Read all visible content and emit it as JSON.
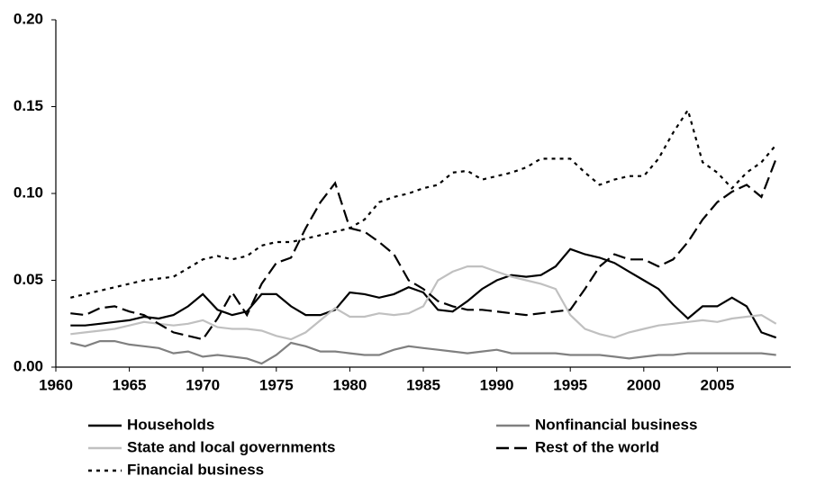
{
  "chart_data": {
    "type": "line",
    "x": [
      1961,
      1962,
      1963,
      1964,
      1965,
      1966,
      1967,
      1968,
      1969,
      1970,
      1971,
      1972,
      1973,
      1974,
      1975,
      1976,
      1977,
      1978,
      1979,
      1980,
      1981,
      1982,
      1983,
      1984,
      1985,
      1986,
      1987,
      1988,
      1989,
      1990,
      1991,
      1992,
      1993,
      1994,
      1995,
      1996,
      1997,
      1998,
      1999,
      2000,
      2001,
      2002,
      2003,
      2004,
      2005,
      2006,
      2007,
      2008,
      2009
    ],
    "series": [
      {
        "name": "Households",
        "color": "#000000",
        "style": "solid",
        "values": [
          0.024,
          0.024,
          0.025,
          0.026,
          0.027,
          0.029,
          0.028,
          0.03,
          0.035,
          0.042,
          0.033,
          0.03,
          0.032,
          0.042,
          0.042,
          0.035,
          0.03,
          0.03,
          0.033,
          0.043,
          0.042,
          0.04,
          0.042,
          0.046,
          0.043,
          0.033,
          0.032,
          0.038,
          0.045,
          0.05,
          0.053,
          0.052,
          0.053,
          0.058,
          0.068,
          0.065,
          0.063,
          0.06,
          0.055,
          0.05,
          0.045,
          0.036,
          0.028,
          0.035,
          0.035,
          0.04,
          0.035,
          0.02,
          0.017
        ]
      },
      {
        "name": "Nonfinancial business",
        "color": "#808080",
        "style": "solid",
        "values": [
          0.014,
          0.012,
          0.015,
          0.015,
          0.013,
          0.012,
          0.011,
          0.008,
          0.009,
          0.006,
          0.007,
          0.006,
          0.005,
          0.002,
          0.007,
          0.014,
          0.012,
          0.009,
          0.009,
          0.008,
          0.007,
          0.007,
          0.01,
          0.012,
          0.011,
          0.01,
          0.009,
          0.008,
          0.009,
          0.01,
          0.008,
          0.008,
          0.008,
          0.008,
          0.007,
          0.007,
          0.007,
          0.006,
          0.005,
          0.006,
          0.007,
          0.007,
          0.008,
          0.008,
          0.008,
          0.008,
          0.008,
          0.008,
          0.007
        ]
      },
      {
        "name": "State and local governments",
        "color": "#c0c0c0",
        "style": "solid",
        "values": [
          0.019,
          0.02,
          0.021,
          0.022,
          0.024,
          0.026,
          0.025,
          0.024,
          0.025,
          0.027,
          0.023,
          0.022,
          0.022,
          0.021,
          0.018,
          0.016,
          0.02,
          0.027,
          0.034,
          0.029,
          0.029,
          0.031,
          0.03,
          0.031,
          0.035,
          0.05,
          0.055,
          0.058,
          0.058,
          0.055,
          0.052,
          0.05,
          0.048,
          0.045,
          0.03,
          0.022,
          0.019,
          0.017,
          0.02,
          0.022,
          0.024,
          0.025,
          0.026,
          0.027,
          0.026,
          0.028,
          0.029,
          0.03,
          0.025
        ]
      },
      {
        "name": "Rest of the world",
        "color": "#000000",
        "style": "dashed",
        "values": [
          0.031,
          0.03,
          0.034,
          0.035,
          0.032,
          0.03,
          0.025,
          0.02,
          0.018,
          0.016,
          0.028,
          0.043,
          0.03,
          0.048,
          0.06,
          0.063,
          0.08,
          0.095,
          0.106,
          0.08,
          0.078,
          0.072,
          0.065,
          0.05,
          0.045,
          0.038,
          0.035,
          0.033,
          0.033,
          0.032,
          0.031,
          0.03,
          0.031,
          0.032,
          0.033,
          0.045,
          0.058,
          0.065,
          0.062,
          0.062,
          0.058,
          0.062,
          0.072,
          0.085,
          0.095,
          0.101,
          0.105,
          0.098,
          0.12
        ]
      },
      {
        "name": "Financial business",
        "color": "#000000",
        "style": "dotted",
        "values": [
          0.04,
          0.042,
          0.044,
          0.046,
          0.048,
          0.05,
          0.051,
          0.052,
          0.057,
          0.062,
          0.064,
          0.062,
          0.064,
          0.07,
          0.072,
          0.072,
          0.074,
          0.076,
          0.078,
          0.08,
          0.085,
          0.095,
          0.098,
          0.1,
          0.103,
          0.105,
          0.112,
          0.113,
          0.108,
          0.11,
          0.112,
          0.115,
          0.12,
          0.12,
          0.12,
          0.112,
          0.105,
          0.108,
          0.11,
          0.11,
          0.12,
          0.135,
          0.148,
          0.118,
          0.112,
          0.103,
          0.112,
          0.118,
          0.128
        ]
      }
    ],
    "xlim": [
      1960,
      2010
    ],
    "xticks": [
      1960,
      1965,
      1970,
      1975,
      1980,
      1985,
      1990,
      1995,
      2000,
      2005
    ],
    "ylim": [
      0,
      0.2
    ],
    "yticks": [
      {
        "value": 0,
        "label": "0.00"
      },
      {
        "value": 0.05,
        "label": "0.05"
      },
      {
        "value": 0.1,
        "label": "0.10"
      },
      {
        "value": 0.15,
        "label": "0.15"
      },
      {
        "value": 0.2,
        "label": "0.20"
      }
    ]
  }
}
